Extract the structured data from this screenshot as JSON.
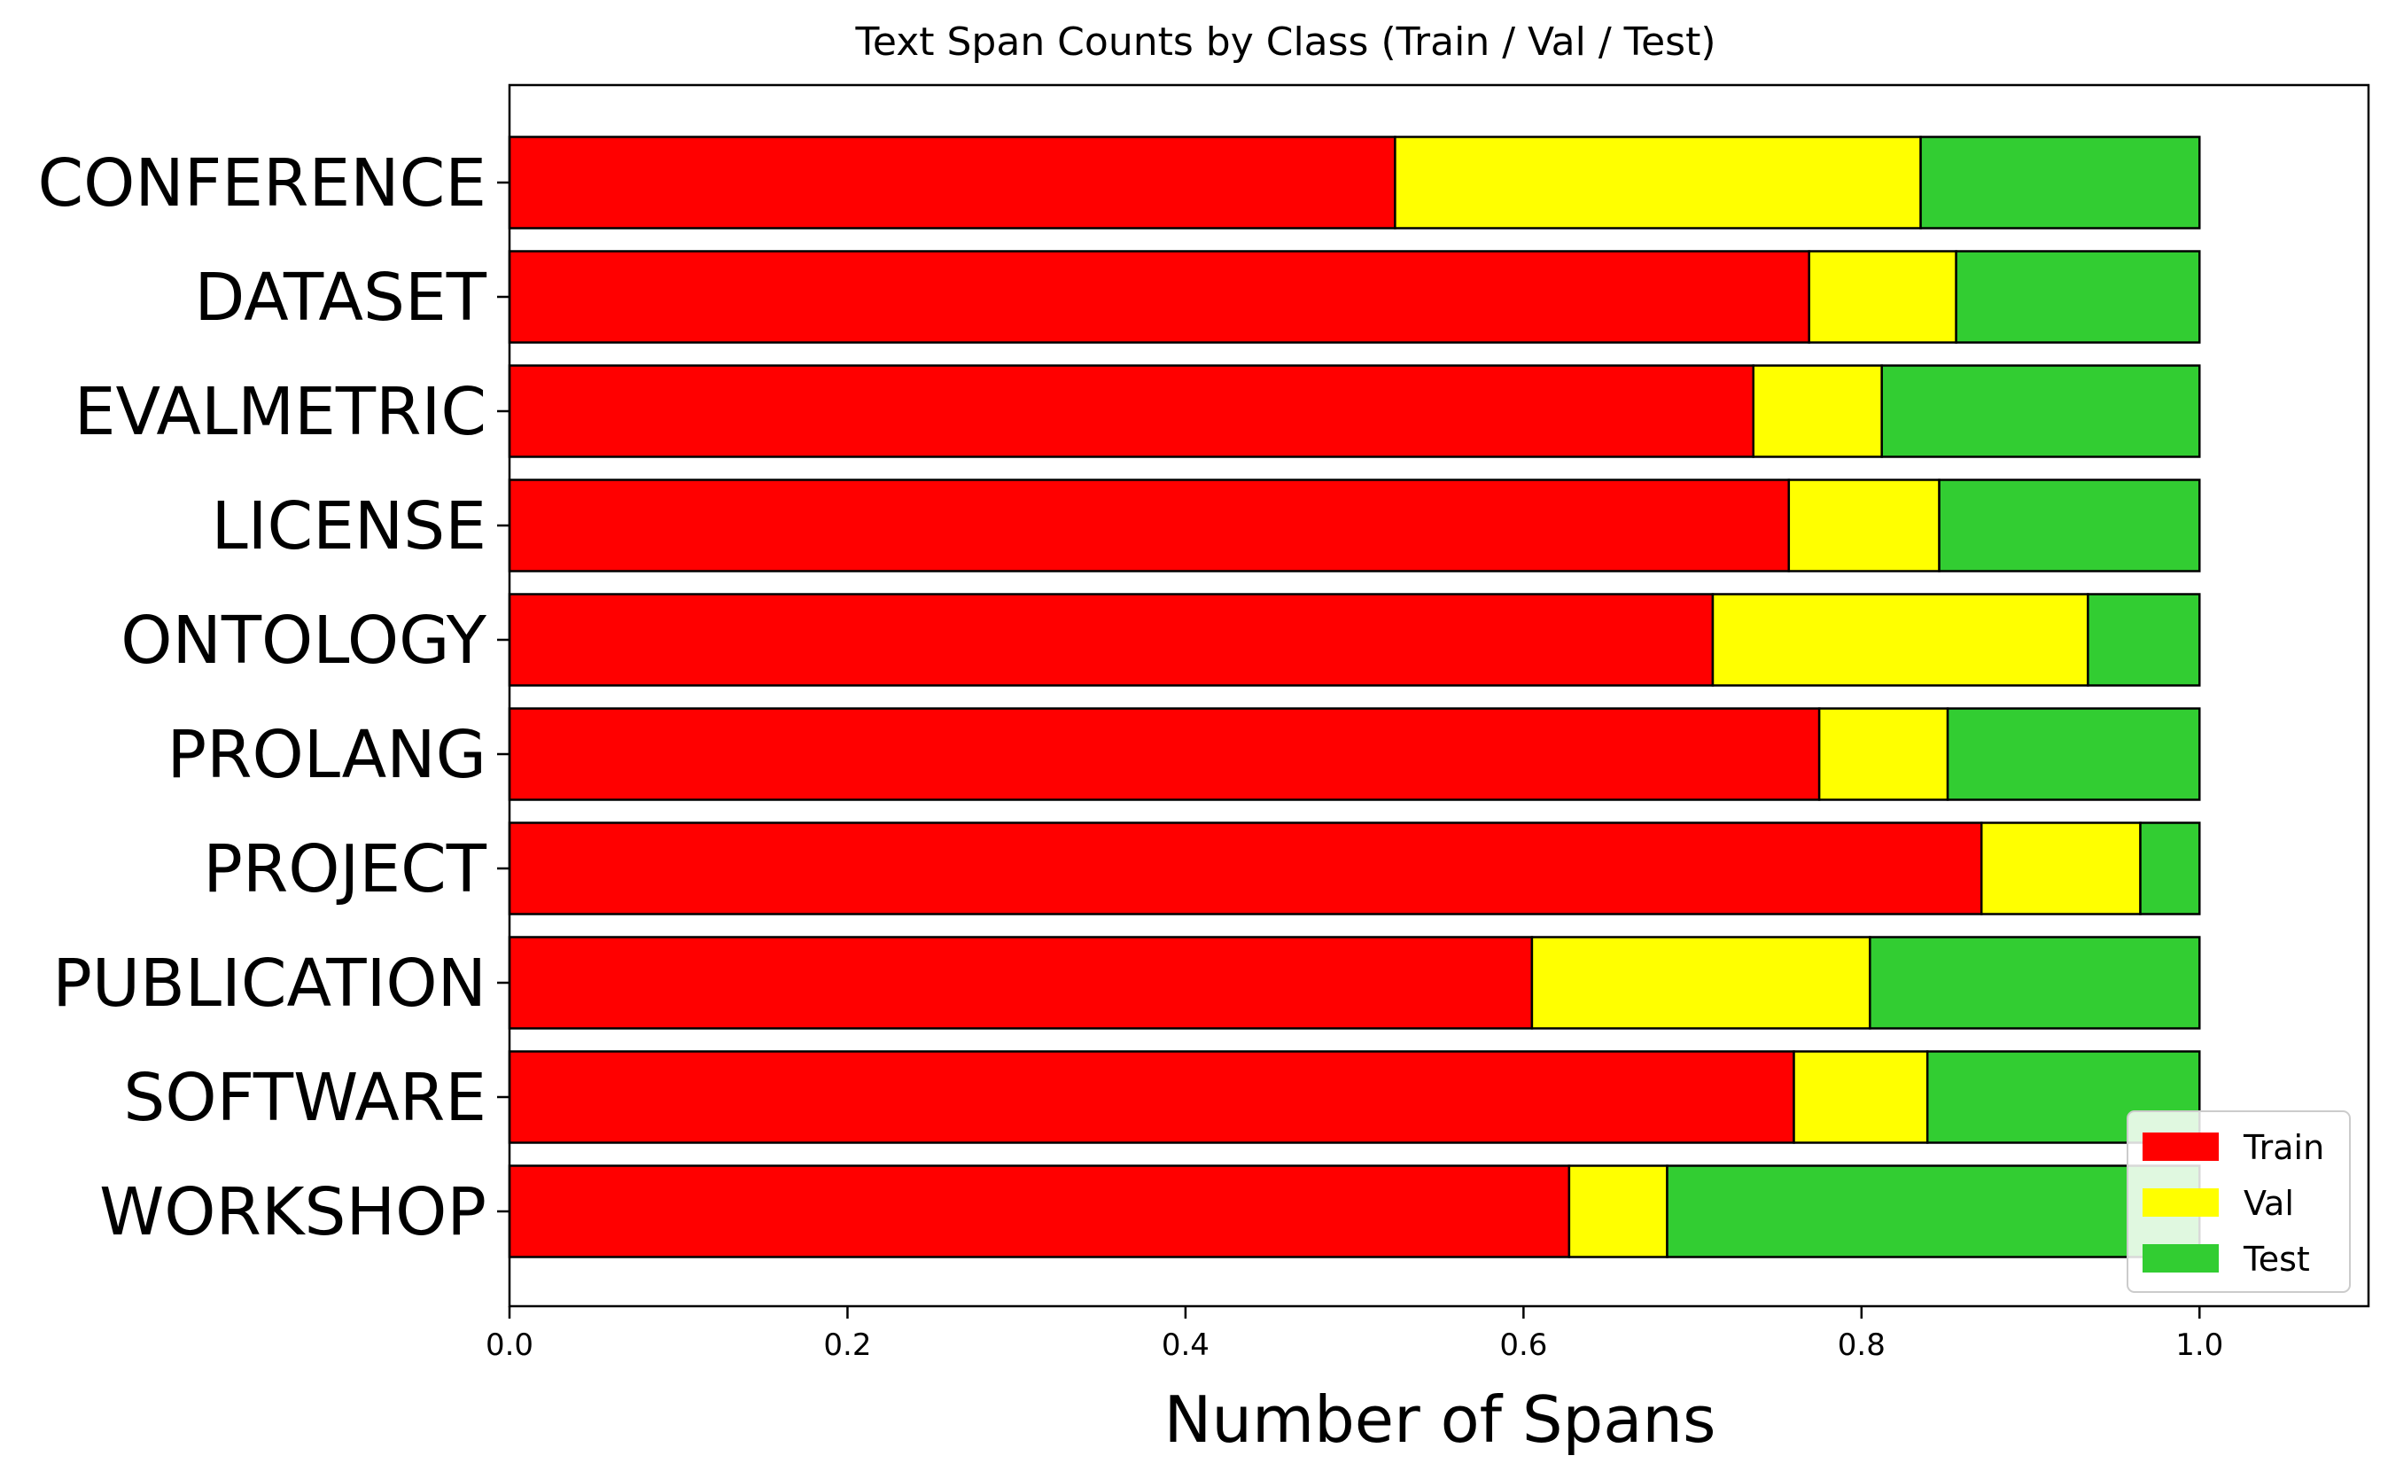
{
  "chart_data": {
    "type": "bar",
    "orientation": "horizontal",
    "stacked": true,
    "title": "Text Span Counts by Class (Train / Val / Test)",
    "xlabel": "Number of Spans",
    "ylabel": "",
    "xlim": [
      0,
      1.1
    ],
    "xticks": [
      "0.0",
      "0.2",
      "0.4",
      "0.6",
      "0.8",
      "1.0"
    ],
    "grid": false,
    "legend_position": "lower-right",
    "categories": [
      "CONFERENCE",
      "DATASET",
      "EVALMETRIC",
      "LICENSE",
      "ONTOLOGY",
      "PROLANG",
      "PROJECT",
      "PUBLICATION",
      "SOFTWARE",
      "WORKSHOP"
    ],
    "series": [
      {
        "name": "Train",
        "color": "#ff0000",
        "values": [
          0.524,
          0.769,
          0.736,
          0.757,
          0.712,
          0.775,
          0.871,
          0.605,
          0.76,
          0.627
        ]
      },
      {
        "name": "Val",
        "color": "#ffff00",
        "values": [
          0.311,
          0.087,
          0.076,
          0.089,
          0.222,
          0.076,
          0.094,
          0.2,
          0.079,
          0.058
        ]
      },
      {
        "name": "Test",
        "color": "#32cd32",
        "values": [
          0.165,
          0.144,
          0.188,
          0.154,
          0.066,
          0.149,
          0.035,
          0.195,
          0.161,
          0.315
        ]
      }
    ]
  }
}
